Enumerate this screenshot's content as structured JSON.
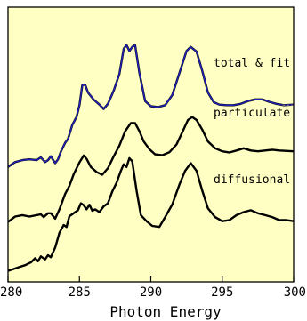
{
  "chart_data": {
    "type": "line",
    "xlabel": "Photon Energy",
    "ylabel": "",
    "xlim": [
      280,
      300
    ],
    "x_ticks": [
      280,
      285,
      290,
      295,
      300
    ],
    "y_ticks": [],
    "grid": false,
    "background_color": "#ffffc4",
    "title": "",
    "series": [
      {
        "name": "total & fit",
        "color": "#000000",
        "points": [
          [
            280,
            0.418
          ],
          [
            280.5,
            0.436
          ],
          [
            281,
            0.443
          ],
          [
            281.5,
            0.446
          ],
          [
            282,
            0.443
          ],
          [
            282.3,
            0.453
          ],
          [
            282.6,
            0.436
          ],
          [
            282.8,
            0.443
          ],
          [
            283,
            0.457
          ],
          [
            283.3,
            0.432
          ],
          [
            283.5,
            0.446
          ],
          [
            283.7,
            0.474
          ],
          [
            284,
            0.506
          ],
          [
            284.2,
            0.52
          ],
          [
            284.5,
            0.571
          ],
          [
            284.8,
            0.6
          ],
          [
            285,
            0.643
          ],
          [
            285.2,
            0.717
          ],
          [
            285.4,
            0.717
          ],
          [
            285.6,
            0.689
          ],
          [
            286,
            0.663
          ],
          [
            286.4,
            0.645
          ],
          [
            286.7,
            0.629
          ],
          [
            287,
            0.648
          ],
          [
            287.4,
            0.696
          ],
          [
            287.8,
            0.757
          ],
          [
            288.1,
            0.848
          ],
          [
            288.3,
            0.862
          ],
          [
            288.5,
            0.84
          ],
          [
            288.7,
            0.855
          ],
          [
            288.9,
            0.862
          ],
          [
            289.2,
            0.76
          ],
          [
            289.6,
            0.658
          ],
          [
            290,
            0.639
          ],
          [
            290.5,
            0.636
          ],
          [
            291,
            0.643
          ],
          [
            291.5,
            0.68
          ],
          [
            292,
            0.76
          ],
          [
            292.5,
            0.84
          ],
          [
            292.8,
            0.855
          ],
          [
            293.2,
            0.838
          ],
          [
            293.6,
            0.768
          ],
          [
            294,
            0.689
          ],
          [
            294.4,
            0.654
          ],
          [
            294.8,
            0.645
          ],
          [
            295.3,
            0.643
          ],
          [
            295.8,
            0.643
          ],
          [
            296.3,
            0.648
          ],
          [
            296.8,
            0.658
          ],
          [
            297.3,
            0.664
          ],
          [
            297.8,
            0.664
          ],
          [
            298.3,
            0.655
          ],
          [
            298.8,
            0.648
          ],
          [
            299.3,
            0.643
          ],
          [
            300,
            0.645
          ]
        ]
      },
      {
        "name": "",
        "color": "#2020b8",
        "points": [
          [
            280,
            0.418
          ],
          [
            280.5,
            0.436
          ],
          [
            281,
            0.443
          ],
          [
            281.5,
            0.446
          ],
          [
            282,
            0.443
          ],
          [
            282.3,
            0.453
          ],
          [
            282.6,
            0.436
          ],
          [
            282.8,
            0.443
          ],
          [
            283,
            0.457
          ],
          [
            283.3,
            0.432
          ],
          [
            283.5,
            0.446
          ],
          [
            283.7,
            0.474
          ],
          [
            284,
            0.506
          ],
          [
            284.2,
            0.52
          ],
          [
            284.5,
            0.571
          ],
          [
            284.8,
            0.6
          ],
          [
            285,
            0.643
          ],
          [
            285.2,
            0.717
          ],
          [
            285.4,
            0.717
          ],
          [
            285.6,
            0.689
          ],
          [
            286,
            0.663
          ],
          [
            286.4,
            0.645
          ],
          [
            286.7,
            0.629
          ],
          [
            287,
            0.648
          ],
          [
            287.4,
            0.696
          ],
          [
            287.8,
            0.757
          ],
          [
            288.1,
            0.848
          ],
          [
            288.3,
            0.862
          ],
          [
            288.5,
            0.84
          ],
          [
            288.7,
            0.855
          ],
          [
            288.9,
            0.862
          ],
          [
            289.2,
            0.76
          ],
          [
            289.6,
            0.658
          ],
          [
            290,
            0.639
          ],
          [
            290.5,
            0.636
          ],
          [
            291,
            0.643
          ],
          [
            291.5,
            0.68
          ],
          [
            292,
            0.76
          ],
          [
            292.5,
            0.84
          ],
          [
            292.8,
            0.855
          ],
          [
            293.2,
            0.838
          ],
          [
            293.6,
            0.768
          ],
          [
            294,
            0.689
          ],
          [
            294.4,
            0.654
          ],
          [
            294.8,
            0.645
          ],
          [
            295.3,
            0.643
          ],
          [
            295.8,
            0.643
          ],
          [
            296.3,
            0.648
          ],
          [
            296.8,
            0.658
          ],
          [
            297.3,
            0.664
          ],
          [
            297.8,
            0.664
          ],
          [
            298.3,
            0.655
          ],
          [
            298.8,
            0.648
          ],
          [
            299.3,
            0.643
          ],
          [
            300,
            0.645
          ]
        ]
      },
      {
        "name": "",
        "color": "#808080",
        "dashed": true,
        "points": [
          [
            299.2,
            0.643
          ],
          [
            300,
            0.643
          ]
        ]
      },
      {
        "name": "particulate",
        "color": "#000000",
        "points": [
          [
            280,
            0.218
          ],
          [
            280.5,
            0.238
          ],
          [
            281,
            0.243
          ],
          [
            281.5,
            0.238
          ],
          [
            282,
            0.243
          ],
          [
            282.3,
            0.246
          ],
          [
            282.5,
            0.236
          ],
          [
            282.8,
            0.25
          ],
          [
            283,
            0.25
          ],
          [
            283.3,
            0.23
          ],
          [
            283.6,
            0.264
          ],
          [
            284,
            0.32
          ],
          [
            284.3,
            0.35
          ],
          [
            284.6,
            0.392
          ],
          [
            285,
            0.435
          ],
          [
            285.3,
            0.46
          ],
          [
            285.5,
            0.448
          ],
          [
            285.8,
            0.418
          ],
          [
            286.2,
            0.4
          ],
          [
            286.6,
            0.39
          ],
          [
            287,
            0.414
          ],
          [
            287.4,
            0.457
          ],
          [
            287.8,
            0.496
          ],
          [
            288.2,
            0.548
          ],
          [
            288.6,
            0.578
          ],
          [
            288.9,
            0.578
          ],
          [
            289.2,
            0.548
          ],
          [
            289.5,
            0.511
          ],
          [
            289.9,
            0.483
          ],
          [
            290.3,
            0.464
          ],
          [
            290.8,
            0.461
          ],
          [
            291.3,
            0.472
          ],
          [
            291.8,
            0.5
          ],
          [
            292.2,
            0.544
          ],
          [
            292.6,
            0.589
          ],
          [
            292.9,
            0.6
          ],
          [
            293.2,
            0.589
          ],
          [
            293.6,
            0.554
          ],
          [
            294,
            0.511
          ],
          [
            294.5,
            0.486
          ],
          [
            295,
            0.475
          ],
          [
            295.5,
            0.471
          ],
          [
            296,
            0.478
          ],
          [
            296.5,
            0.486
          ],
          [
            297,
            0.478
          ],
          [
            297.5,
            0.475
          ],
          [
            298,
            0.478
          ],
          [
            298.5,
            0.481
          ],
          [
            299,
            0.478
          ],
          [
            300,
            0.475
          ]
        ]
      },
      {
        "name": "diffusional",
        "color": "#000000",
        "points": [
          [
            280,
            0.04
          ],
          [
            280.4,
            0.047
          ],
          [
            280.8,
            0.054
          ],
          [
            281.2,
            0.061
          ],
          [
            281.6,
            0.071
          ],
          [
            281.9,
            0.086
          ],
          [
            282.1,
            0.075
          ],
          [
            282.3,
            0.093
          ],
          [
            282.6,
            0.082
          ],
          [
            282.8,
            0.097
          ],
          [
            283,
            0.09
          ],
          [
            283.3,
            0.125
          ],
          [
            283.6,
            0.179
          ],
          [
            283.9,
            0.207
          ],
          [
            284.1,
            0.2
          ],
          [
            284.3,
            0.239
          ],
          [
            284.6,
            0.25
          ],
          [
            284.9,
            0.261
          ],
          [
            285.1,
            0.286
          ],
          [
            285.3,
            0.279
          ],
          [
            285.5,
            0.264
          ],
          [
            285.7,
            0.281
          ],
          [
            285.9,
            0.259
          ],
          [
            286.1,
            0.264
          ],
          [
            286.4,
            0.254
          ],
          [
            286.7,
            0.275
          ],
          [
            287,
            0.286
          ],
          [
            287.3,
            0.329
          ],
          [
            287.6,
            0.361
          ],
          [
            287.9,
            0.404
          ],
          [
            288.1,
            0.428
          ],
          [
            288.3,
            0.418
          ],
          [
            288.5,
            0.45
          ],
          [
            288.7,
            0.439
          ],
          [
            289,
            0.332
          ],
          [
            289.3,
            0.243
          ],
          [
            289.7,
            0.221
          ],
          [
            290.1,
            0.204
          ],
          [
            290.6,
            0.2
          ],
          [
            291,
            0.236
          ],
          [
            291.5,
            0.282
          ],
          [
            292,
            0.354
          ],
          [
            292.4,
            0.404
          ],
          [
            292.8,
            0.432
          ],
          [
            293.2,
            0.404
          ],
          [
            293.6,
            0.332
          ],
          [
            294,
            0.268
          ],
          [
            294.5,
            0.236
          ],
          [
            295,
            0.221
          ],
          [
            295.5,
            0.225
          ],
          [
            296,
            0.243
          ],
          [
            296.5,
            0.254
          ],
          [
            297,
            0.261
          ],
          [
            297.5,
            0.25
          ],
          [
            298,
            0.243
          ],
          [
            298.5,
            0.236
          ],
          [
            299,
            0.225
          ],
          [
            299.5,
            0.225
          ],
          [
            300,
            0.221
          ]
        ]
      }
    ]
  }
}
